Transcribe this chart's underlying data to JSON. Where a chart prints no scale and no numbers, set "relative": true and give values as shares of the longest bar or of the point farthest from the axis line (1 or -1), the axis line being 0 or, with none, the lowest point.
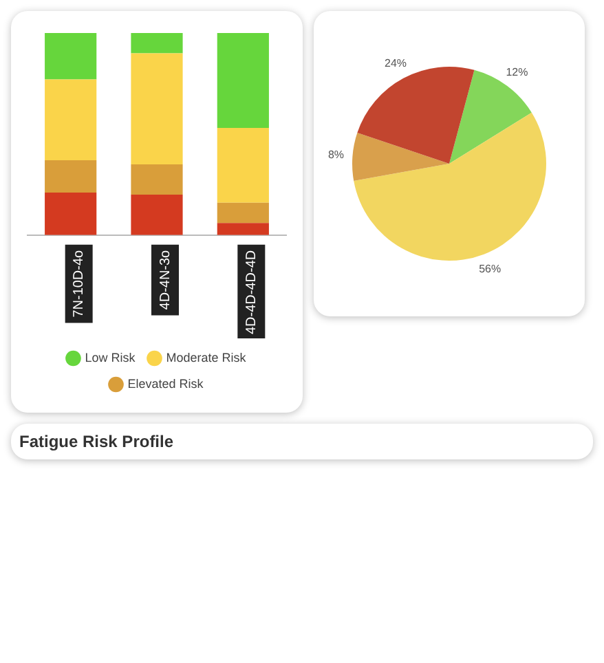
{
  "chart_data": [
    {
      "type": "bar",
      "stacked": true,
      "relative": true,
      "categories": [
        "7N-10D-4o",
        "4D-4N-3o",
        "4D-4D-4D-4D"
      ],
      "legend": "bottom",
      "series": [
        {
          "color": "#d43a20",
          "values": [
            0.21,
            0.2,
            0.06
          ]
        },
        {
          "name": "Elevated Risk",
          "color": "#d99e3a",
          "values": [
            0.16,
            0.15,
            0.1
          ]
        },
        {
          "name": "Moderate Risk",
          "color": "#fad44a",
          "values": [
            0.4,
            0.55,
            0.37
          ]
        },
        {
          "name": "Low Risk",
          "color": "#66d63c",
          "values": [
            0.23,
            0.1,
            0.47
          ]
        }
      ]
    },
    {
      "type": "pie",
      "categories": [
        null,
        null,
        null,
        null
      ],
      "values": [
        12,
        56,
        8,
        24
      ],
      "colors": [
        "#84d65a",
        "#f2d660",
        "#d9a04c",
        "#c2452f"
      ],
      "value_labels": [
        "12%",
        "56%",
        "8%",
        "24%"
      ]
    },
    {
      "type": "other",
      "title": "Fatigue Risk Profile"
    }
  ]
}
